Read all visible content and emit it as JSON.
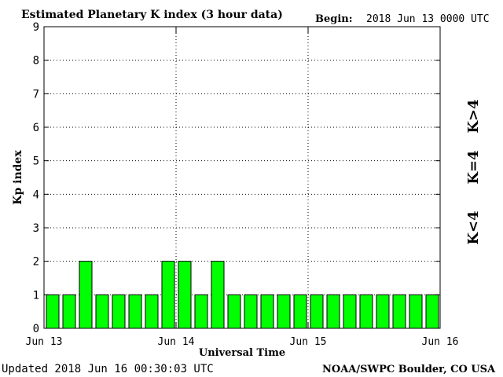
{
  "header": {
    "title": "Estimated Planetary K index (3 hour data)",
    "begin_label": "Begin:",
    "begin_value": "2018 Jun 13 0000 UTC"
  },
  "footer": {
    "updated": "Updated 2018 Jun 16 00:30:03 UTC",
    "credit": "NOAA/SWPC Boulder, CO USA"
  },
  "legend": {
    "green": "K<4",
    "yellow": "K=4",
    "red": "K>4"
  },
  "colors": {
    "green": "#00ff00",
    "yellow": "#ffcc00",
    "red": "#ff2200",
    "bar_border": "#000000"
  },
  "chart_data": {
    "type": "bar",
    "title": "Estimated Planetary K index (3 hour data)",
    "xlabel": "Universal Time",
    "ylabel": "Kp index",
    "ylim": [
      0,
      9
    ],
    "yticks": [
      0,
      1,
      2,
      3,
      4,
      5,
      6,
      7,
      8,
      9
    ],
    "x_tick_labels": [
      "Jun 13",
      "Jun 14",
      "Jun 15",
      "Jun 16"
    ],
    "interval_hours": 3,
    "grid": "dotted, at day boundaries and each Kp unit",
    "values": [
      1,
      1,
      2,
      1,
      1,
      1,
      1,
      2,
      2,
      1,
      2,
      1,
      1,
      1,
      1,
      1,
      1,
      1,
      1,
      1,
      1,
      1,
      1,
      1
    ]
  }
}
